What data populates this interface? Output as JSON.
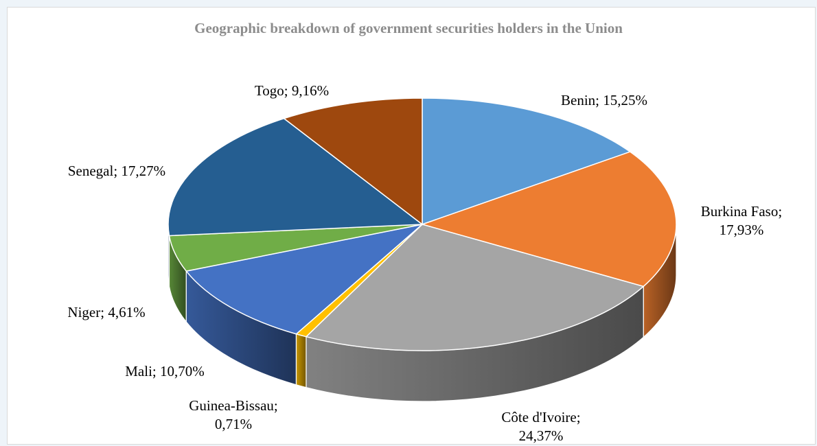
{
  "chart_data": {
    "type": "pie",
    "title": "Geographic breakdown of government securities holders in the Union",
    "slices": [
      {
        "label": "Benin",
        "text": [
          "Benin; 15,25%"
        ],
        "value": 15.25,
        "color": "#5b9bd5"
      },
      {
        "label": "Burkina Faso",
        "text": [
          "Burkina Faso;",
          "17,93%"
        ],
        "value": 17.93,
        "color": "#ed7d31"
      },
      {
        "label": "Côte d'Ivoire",
        "text": [
          "Côte d'Ivoire;",
          "24,37%"
        ],
        "value": 24.37,
        "color": "#a5a5a5"
      },
      {
        "label": "Guinea-Bissau",
        "text": [
          "Guinea-Bissau;",
          "0,71%"
        ],
        "value": 0.71,
        "color": "#ffc000"
      },
      {
        "label": "Mali",
        "text": [
          "Mali; 10,70%"
        ],
        "value": 10.7,
        "color": "#4472c4"
      },
      {
        "label": "Niger",
        "text": [
          "Niger; 4,61%"
        ],
        "value": 4.61,
        "color": "#70ad47"
      },
      {
        "label": "Senegal",
        "text": [
          "Senegal; 17,27%"
        ],
        "value": 17.27,
        "color": "#255e91"
      },
      {
        "label": "Togo",
        "text": [
          "Togo; 9,16%"
        ],
        "value": 9.16,
        "color": "#9e480e"
      }
    ]
  }
}
